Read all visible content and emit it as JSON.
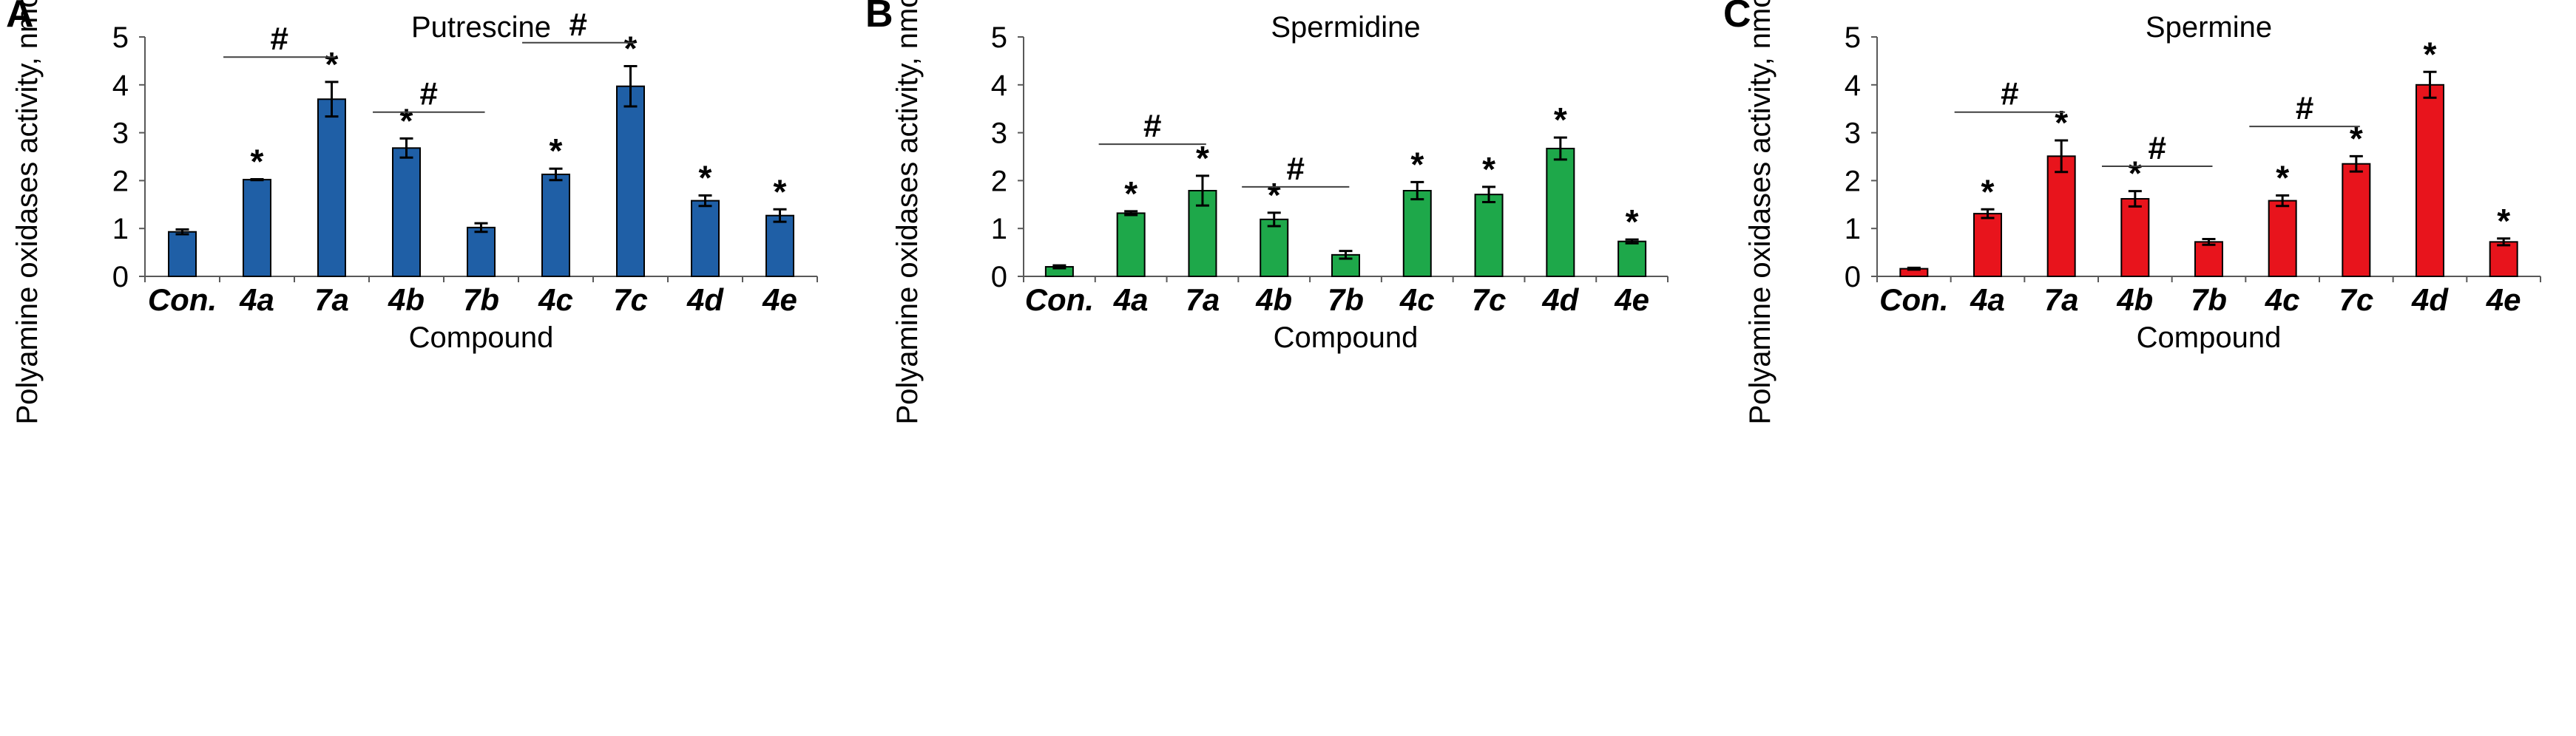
{
  "figure_colors": {
    "A": "#1f5fa6",
    "B": "#1ea84a",
    "C": "#e8141c",
    "edge": "#000000"
  },
  "chart_data": [
    {
      "panel": "A",
      "type": "bar",
      "title": "Putrescine",
      "xlabel": "Compound",
      "ylabel": "Polyamine oxidases activity, nmol/mkg/h",
      "ylim": [
        0,
        5
      ],
      "yticks": [
        "0",
        "1",
        "2",
        "3",
        "4",
        "5"
      ],
      "categories": [
        "Con.",
        "4a",
        "7a",
        "4b",
        "7b",
        "4c",
        "7c",
        "4d",
        "4e"
      ],
      "values": [
        0.93,
        2.02,
        3.7,
        2.68,
        1.02,
        2.13,
        3.97,
        1.58,
        1.27
      ],
      "errors": [
        0.05,
        0.01,
        0.36,
        0.2,
        0.09,
        0.12,
        0.42,
        0.11,
        0.13
      ],
      "significance_star": [
        false,
        true,
        true,
        true,
        false,
        true,
        true,
        true,
        true
      ],
      "star_label": "*",
      "hash_label": "#",
      "hash_comparisons": [
        {
          "from": 1,
          "to": 2,
          "y": 4.58
        },
        {
          "from": 3,
          "to": 4,
          "y": 3.43
        },
        {
          "from": 5,
          "to": 6,
          "y": 4.88
        }
      ]
    },
    {
      "panel": "B",
      "type": "bar",
      "title": "Spermidine",
      "xlabel": "Compound",
      "ylabel": "Polyamine oxidases activity, nmol/mkg/h",
      "ylim": [
        0,
        5
      ],
      "yticks": [
        "0",
        "1",
        "2",
        "3",
        "4",
        "5"
      ],
      "categories": [
        "Con.",
        "4a",
        "7a",
        "4b",
        "7b",
        "4c",
        "7c",
        "4d",
        "4e"
      ],
      "values": [
        0.2,
        1.32,
        1.79,
        1.19,
        0.45,
        1.79,
        1.71,
        2.67,
        0.73
      ],
      "errors": [
        0.03,
        0.04,
        0.31,
        0.14,
        0.08,
        0.18,
        0.16,
        0.23,
        0.04
      ],
      "significance_star": [
        false,
        true,
        true,
        true,
        false,
        true,
        true,
        true,
        true
      ],
      "star_label": "*",
      "hash_label": "#",
      "hash_comparisons": [
        {
          "from": 1,
          "to": 2,
          "y": 2.76
        },
        {
          "from": 3,
          "to": 4,
          "y": 1.87
        }
      ]
    },
    {
      "panel": "C",
      "type": "bar",
      "title": "Spermine",
      "xlabel": "Compound",
      "ylabel": "Polyamine oxidases activity, nmol/mkg/h",
      "ylim": [
        0,
        5
      ],
      "yticks": [
        "0",
        "1",
        "2",
        "3",
        "4",
        "5"
      ],
      "categories": [
        "Con.",
        "4a",
        "7a",
        "4b",
        "7b",
        "4c",
        "7c",
        "4d",
        "4e"
      ],
      "values": [
        0.16,
        1.31,
        2.51,
        1.62,
        0.72,
        1.58,
        2.35,
        4.0,
        0.72
      ],
      "errors": [
        0.02,
        0.09,
        0.33,
        0.16,
        0.06,
        0.11,
        0.16,
        0.27,
        0.07
      ],
      "significance_star": [
        false,
        true,
        true,
        true,
        false,
        true,
        true,
        true,
        true
      ],
      "star_label": "*",
      "hash_label": "#",
      "hash_comparisons": [
        {
          "from": 1,
          "to": 2,
          "y": 3.43
        },
        {
          "from": 3,
          "to": 4,
          "y": 2.3
        },
        {
          "from": 5,
          "to": 6,
          "y": 3.13
        }
      ]
    }
  ]
}
